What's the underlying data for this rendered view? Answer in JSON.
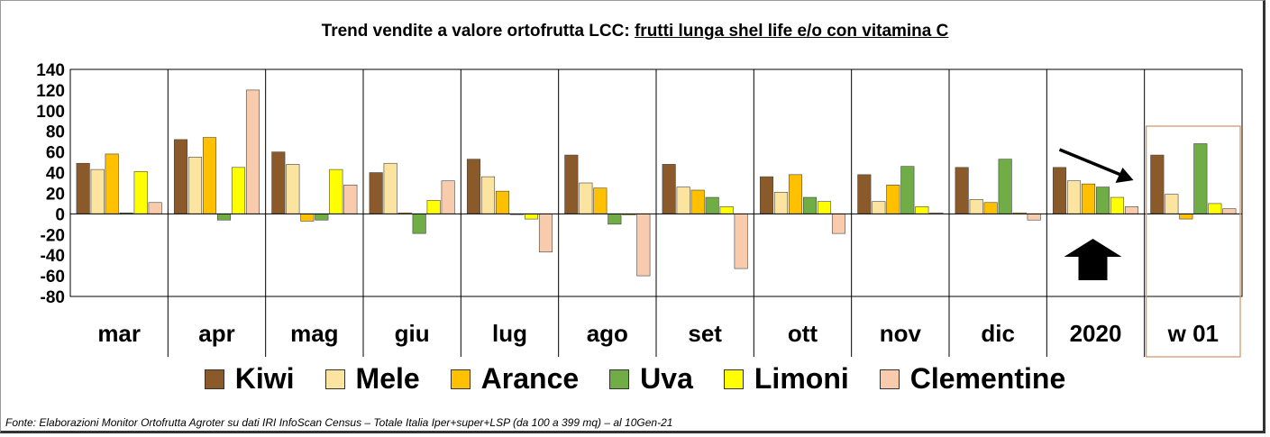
{
  "title": {
    "prefix": "Trend vendite a valore ortofrutta LCC: ",
    "underlined": "frutti lunga shel life e/o con vitamina C"
  },
  "chart_data": {
    "type": "bar",
    "title": "Trend vendite a valore ortofrutta LCC: frutti lunga shel life e/o con vitamina C",
    "xlabel": "",
    "ylabel": "",
    "ylim": [
      -80,
      140
    ],
    "yticks": [
      140,
      120,
      100,
      80,
      60,
      40,
      20,
      0,
      -20,
      -40,
      -60,
      -80
    ],
    "categories": [
      "mar",
      "apr",
      "mag",
      "giu",
      "lug",
      "ago",
      "set",
      "ott",
      "nov",
      "dic",
      "2020",
      "w 01"
    ],
    "series": [
      {
        "name": "Kiwi",
        "color": "#8B5A2B",
        "values": [
          49,
          72,
          60,
          40,
          53,
          57,
          48,
          36,
          38,
          45,
          45,
          57
        ]
      },
      {
        "name": "Mele",
        "color": "#FBE3A0",
        "values": [
          43,
          55,
          48,
          49,
          36,
          30,
          26,
          21,
          12,
          14,
          32,
          19
        ]
      },
      {
        "name": "Arance",
        "color": "#FFC000",
        "values": [
          58,
          74,
          -7,
          1,
          22,
          25,
          23,
          38,
          28,
          11,
          29,
          -5
        ]
      },
      {
        "name": "Uva",
        "color": "#70AD47",
        "values": [
          1,
          -6,
          -6,
          -19,
          0,
          -10,
          16,
          16,
          46,
          53,
          26,
          68
        ]
      },
      {
        "name": "Limoni",
        "color": "#FFFF00",
        "values": [
          41,
          45,
          43,
          13,
          -5,
          -1,
          7,
          12,
          7,
          1,
          16,
          10
        ]
      },
      {
        "name": "Clementine",
        "color": "#F8CBAD",
        "values": [
          11,
          120,
          28,
          32,
          -37,
          -60,
          -53,
          -19,
          1,
          -6,
          7,
          5
        ]
      }
    ],
    "annotations": [
      "down-right trend arrow above 2020",
      "black up arrow below 2020",
      "highlight box around w 01"
    ]
  },
  "source": "Fonte: Elaborazioni Monitor Ortofrutta Agroter su dati IRI InfoScan Census – Totale Italia Iper+super+LSP (da 100 a 399 mq) – al 10Gen-21"
}
